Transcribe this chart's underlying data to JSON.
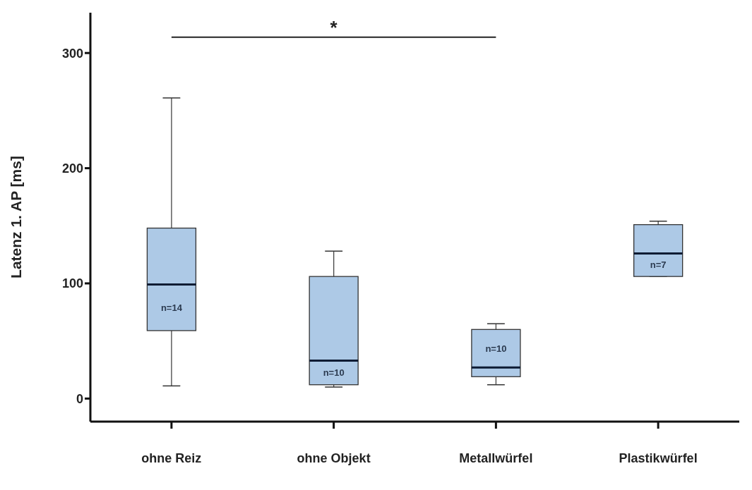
{
  "chart_data": {
    "type": "box",
    "ylabel": "Latenz 1. AP [ms]",
    "categories": [
      "ohne Reiz",
      "ohne Objekt",
      "Metallwürfel",
      "Plastikwürfel"
    ],
    "boxes": [
      {
        "low": 11,
        "q1": 59,
        "median": 99,
        "q3": 148,
        "high": 261
      },
      {
        "low": 10,
        "q1": 12,
        "median": 33,
        "q3": 106,
        "high": 128
      },
      {
        "low": 12,
        "q1": 19,
        "median": 27,
        "q3": 60,
        "high": 65
      },
      {
        "low": 106,
        "q1": 106,
        "median": 126,
        "q3": 151,
        "high": 154
      }
    ],
    "color": "#adc9e6",
    "ylim": [
      -20,
      335
    ],
    "yticks": [
      0,
      100,
      200,
      300
    ],
    "grid": false,
    "legend": false,
    "annotations": [
      "*",
      "n=14",
      "n=10",
      "n=10",
      "n=7"
    ]
  }
}
